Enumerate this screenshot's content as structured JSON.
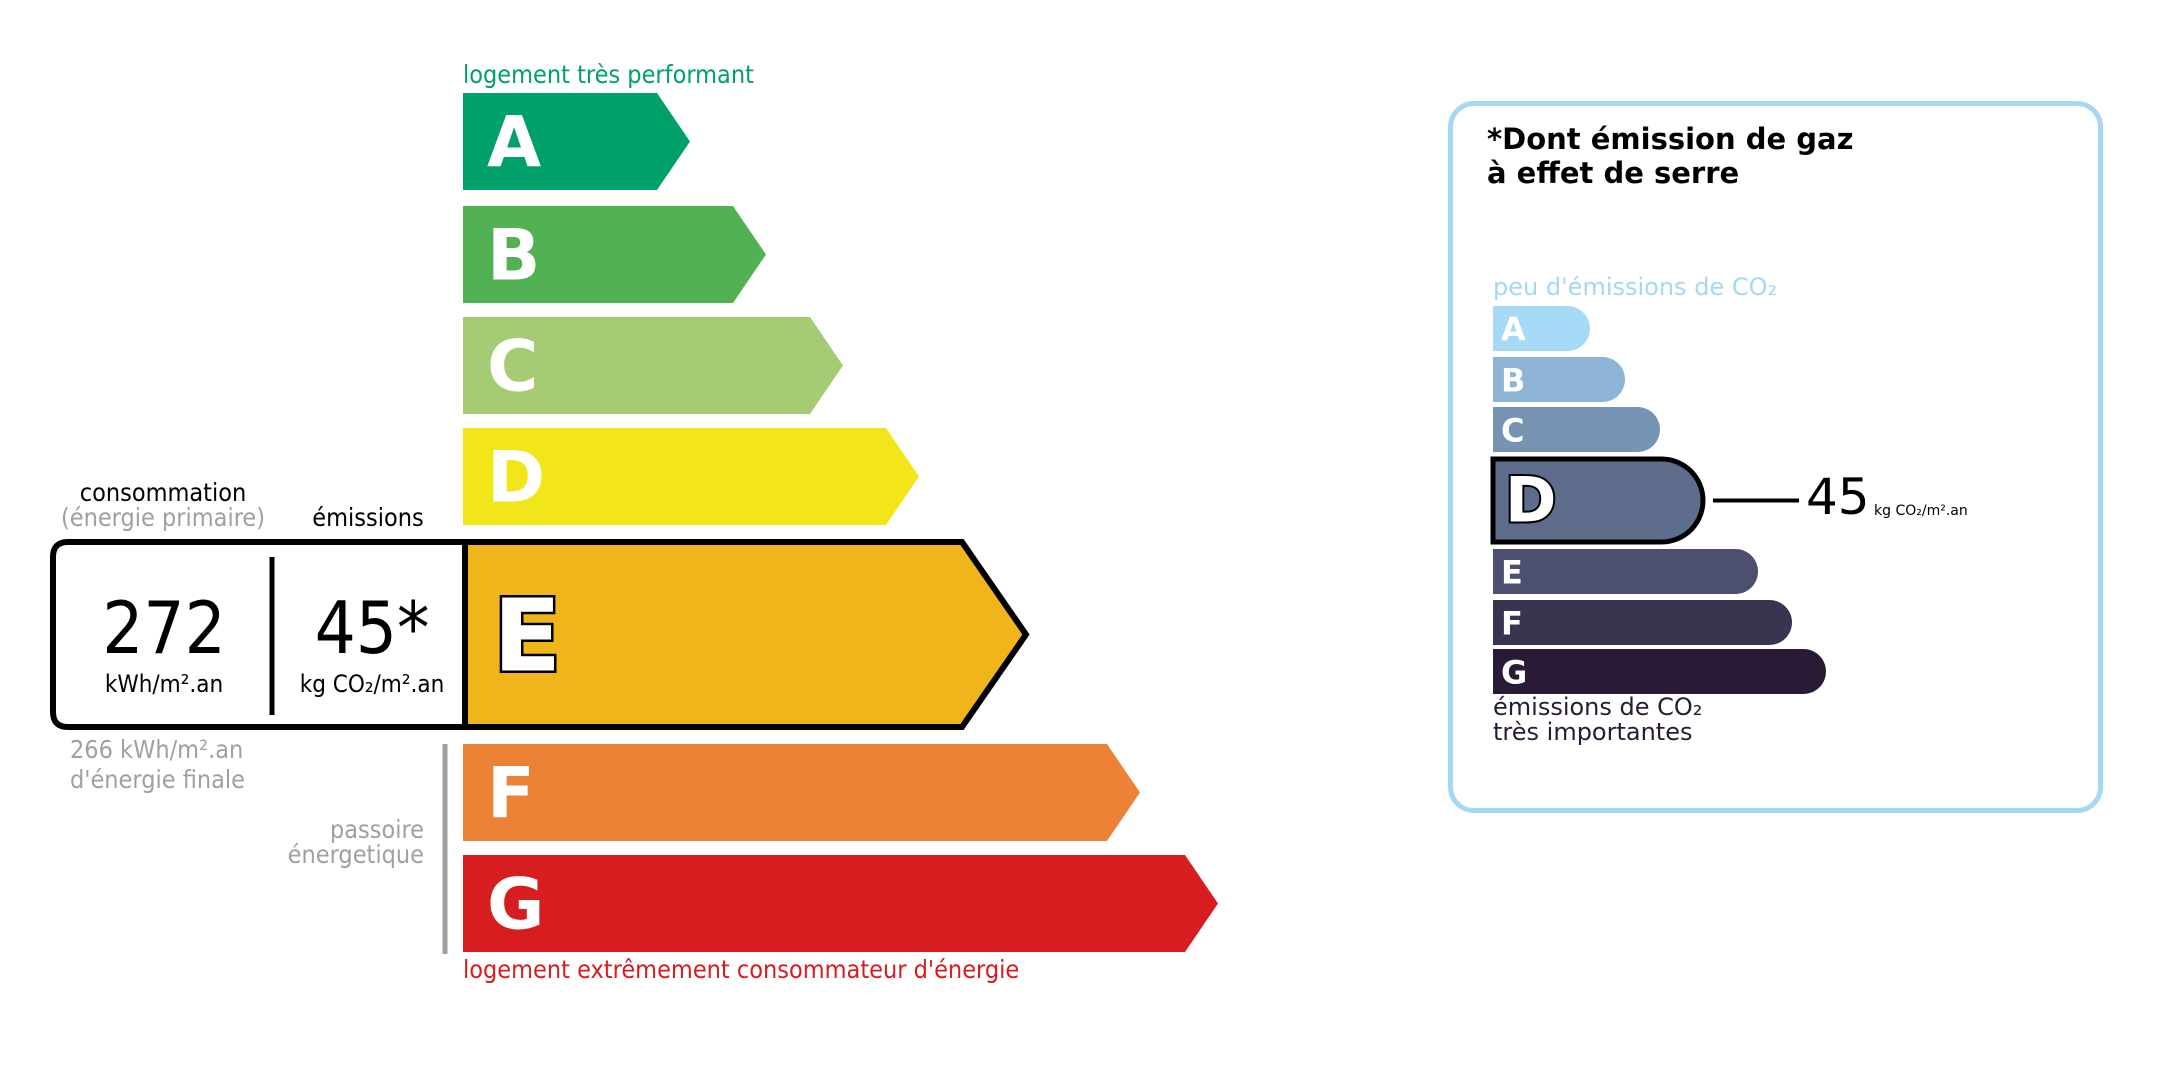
{
  "energy": {
    "top_label": "logement très performant",
    "bottom_label": "logement extrêmement consommateur d'énergie",
    "classes": [
      {
        "letter": "A",
        "color": "#00a06c"
      },
      {
        "letter": "B",
        "color": "#52b153"
      },
      {
        "letter": "C",
        "color": "#a5cc74"
      },
      {
        "letter": "D",
        "color": "#f2e61b"
      },
      {
        "letter": "E",
        "color": "#efb51b"
      },
      {
        "letter": "F",
        "color": "#eb8235"
      },
      {
        "letter": "G",
        "color": "#d71d20"
      }
    ],
    "current_class": "E",
    "consumption_label": "consommation",
    "consumption_sub": "(énergie primaire)",
    "emissions_label": "émissions",
    "consumption_value": "272",
    "consumption_unit": "kWh/m².an",
    "emissions_value": "45*",
    "emissions_unit": "kg CO₂/m².an",
    "final_energy": "266 kWh/m².an",
    "final_energy_label": "d'énergie finale",
    "passoire_1": "passoire",
    "passoire_2": "énergetique"
  },
  "ges": {
    "title_1": "*Dont émission de gaz",
    "title_2": "à effet de serre",
    "top_label": "peu d'émissions de CO₂",
    "bottom_label_1": "émissions de CO₂",
    "bottom_label_2": "très importantes",
    "classes": [
      {
        "letter": "A",
        "color": "#a4daf6"
      },
      {
        "letter": "B",
        "color": "#8db3d5"
      },
      {
        "letter": "C",
        "color": "#7693b3"
      },
      {
        "letter": "D",
        "color": "#5f6d8d"
      },
      {
        "letter": "E",
        "color": "#4c4f6e"
      },
      {
        "letter": "F",
        "color": "#393551"
      },
      {
        "letter": "G",
        "color": "#291b35"
      }
    ],
    "current_class": "D",
    "value": "45",
    "unit": "kg CO₂/m².an",
    "border_color": "#a5d8f3"
  }
}
